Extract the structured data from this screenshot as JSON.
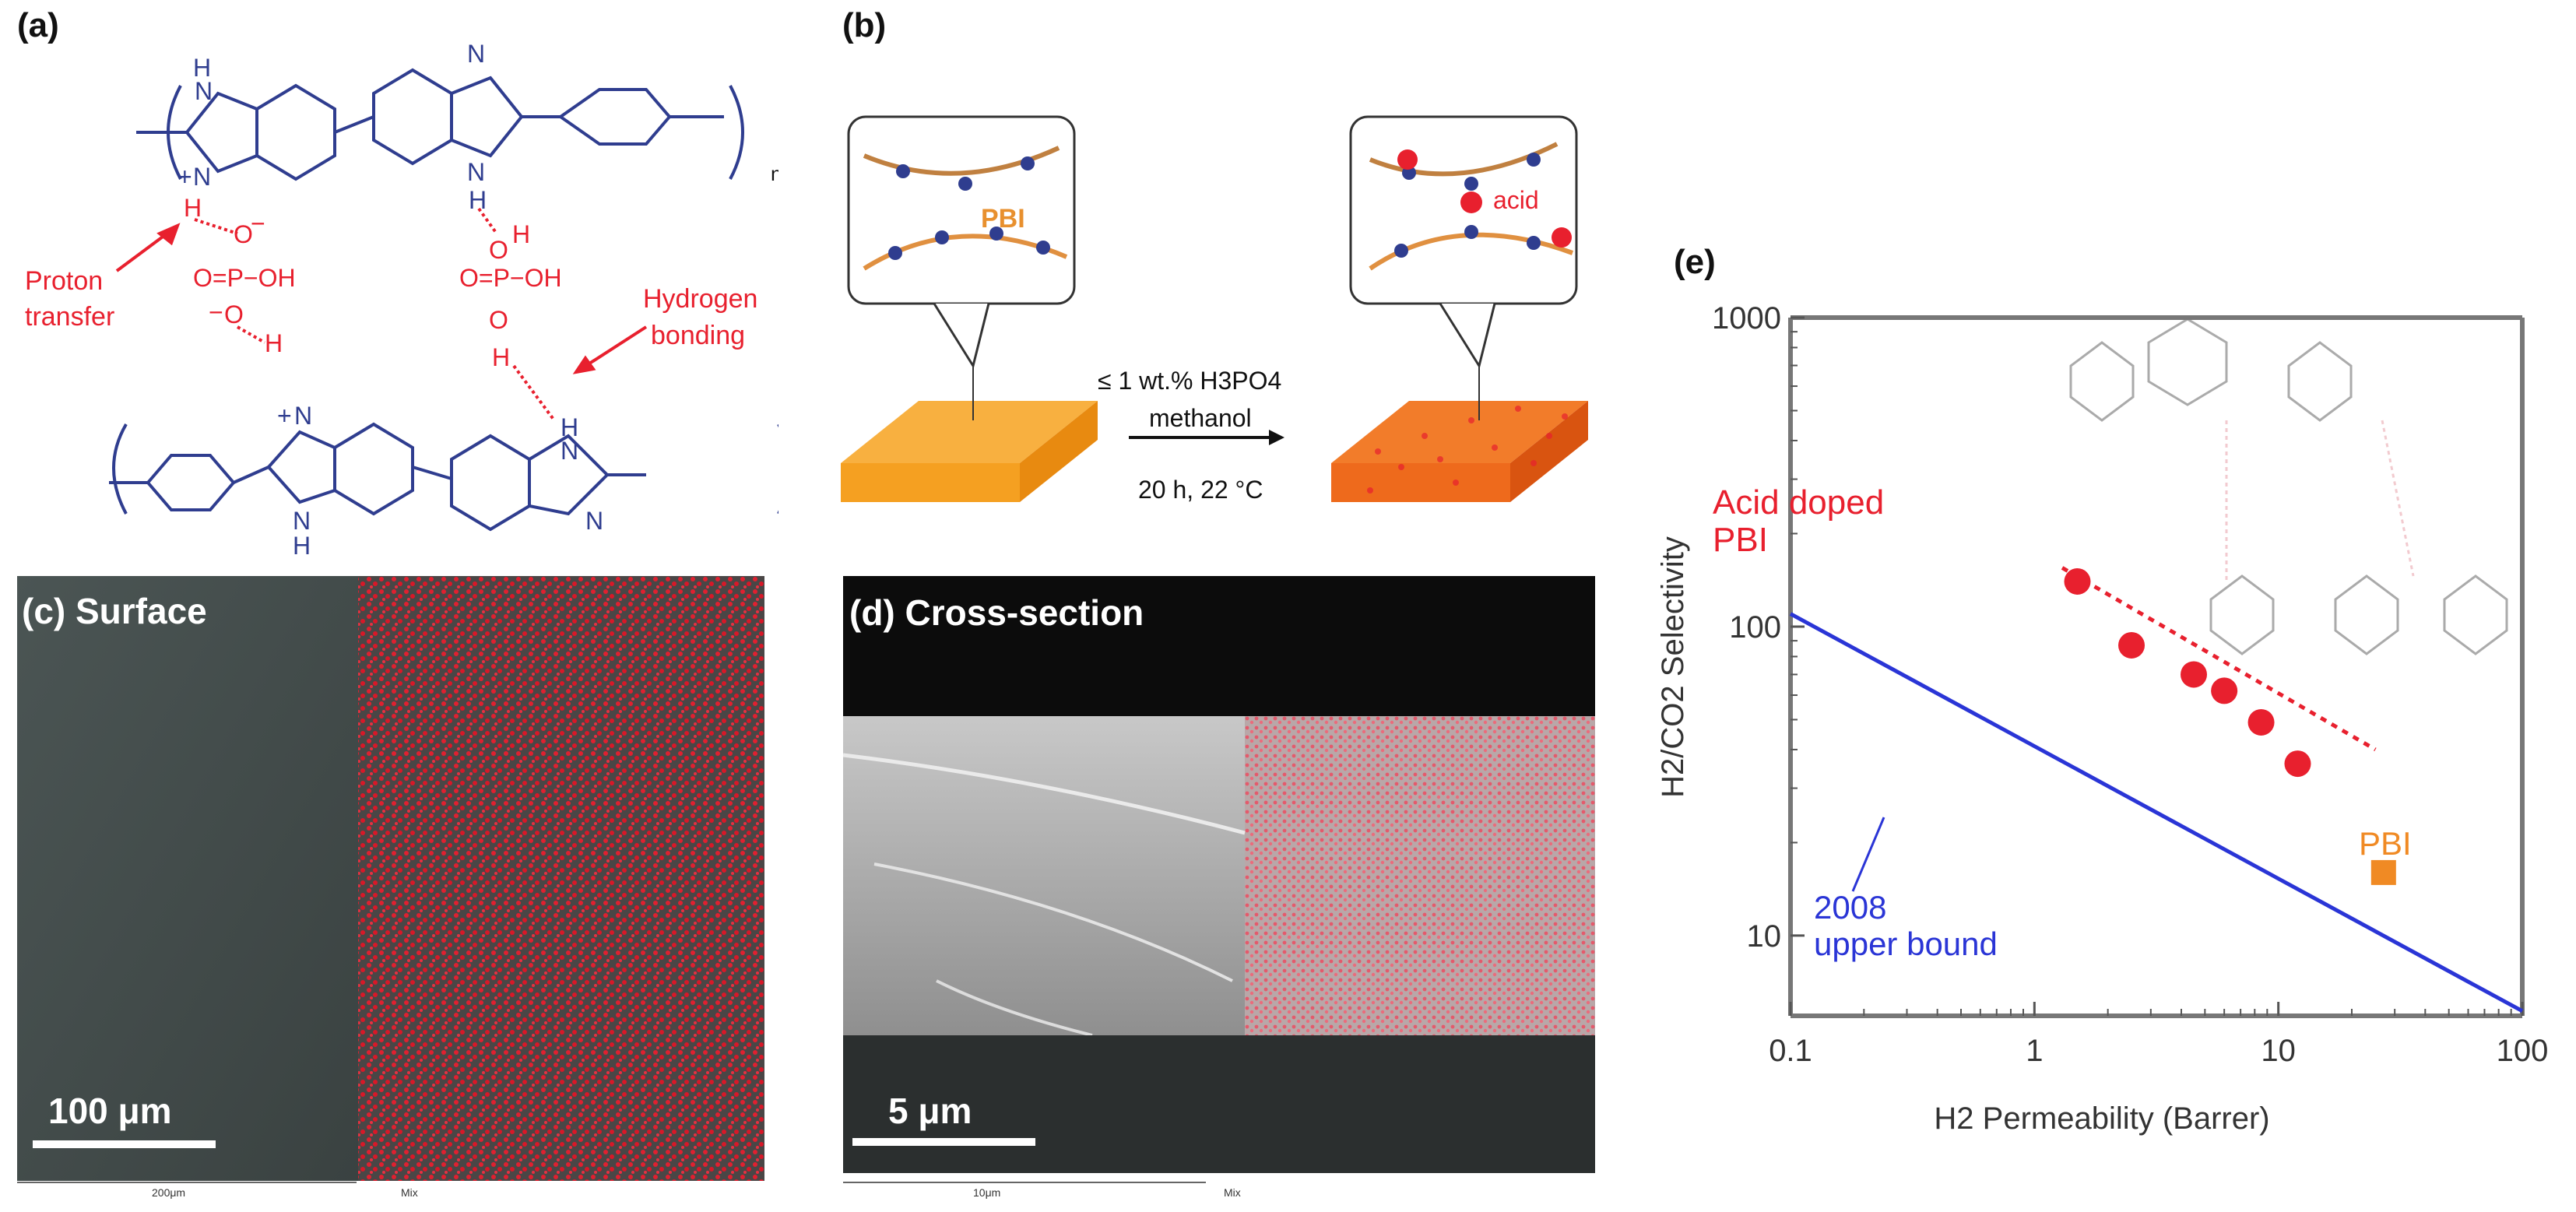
{
  "panel_a": {
    "label": "(a)",
    "n1": "n",
    "n2": "n",
    "proton_transfer": [
      "Proton",
      "transfer"
    ],
    "hydrogen_bonding": [
      "Hydrogen",
      "bonding"
    ],
    "atoms": {
      "H": "H",
      "N": "N",
      "NH": "N",
      "plus": "+",
      "O": "O",
      "OH": "OH",
      "P": "P"
    }
  },
  "panel_b": {
    "label": "(b)",
    "pbi": "PBI",
    "acid": "acid",
    "conditions": [
      "≤ 1 wt.% H3PO4",
      "methanol",
      "20 h, 22 °C"
    ]
  },
  "panel_c": {
    "label": "(c) Surface",
    "scale": "100 μm",
    "footer_scale": "200μm",
    "footer_mix": "Mix"
  },
  "panel_d": {
    "label": "(d) Cross-section",
    "scale": "5 μm",
    "footer_scale": "10μm",
    "footer_mix": "Mix"
  },
  "panel_e": {
    "label": "(e)",
    "acid_doped_label": [
      "Acid doped",
      "PBI"
    ],
    "pbi_label": "PBI",
    "bound_label": [
      "2008",
      "upper bound"
    ]
  },
  "chart_data": {
    "type": "scatter",
    "xlabel": "H2 Permeability (Barrer)",
    "ylabel": "H2/CO2 Selectivity",
    "xscale": "log",
    "yscale": "log",
    "xlim": [
      0.1,
      100
    ],
    "ylim": [
      5.5,
      1000
    ],
    "x_ticks": [
      "0.1",
      "1",
      "10",
      "100"
    ],
    "y_ticks": [
      "10",
      "100",
      "1000"
    ],
    "series": [
      {
        "name": "Acid doped PBI",
        "marker": "circle",
        "color": "#e8202e",
        "points": [
          [
            1.5,
            140
          ],
          [
            2.5,
            87
          ],
          [
            4.5,
            70
          ],
          [
            6.0,
            62
          ],
          [
            8.5,
            49
          ],
          [
            12.0,
            36
          ]
        ]
      },
      {
        "name": "PBI",
        "marker": "square",
        "color": "#f08a24",
        "points": [
          [
            27,
            16
          ]
        ]
      }
    ],
    "lines": [
      {
        "name": "2008 upper bound",
        "color": "#2a35d6",
        "style": "solid",
        "points": [
          [
            0.1,
            110
          ],
          [
            100,
            5.7
          ]
        ]
      },
      {
        "name": "acid doped trend",
        "color": "#e8202e",
        "style": "dotted",
        "points": [
          [
            1.3,
            155
          ],
          [
            25,
            40
          ]
        ]
      }
    ]
  }
}
